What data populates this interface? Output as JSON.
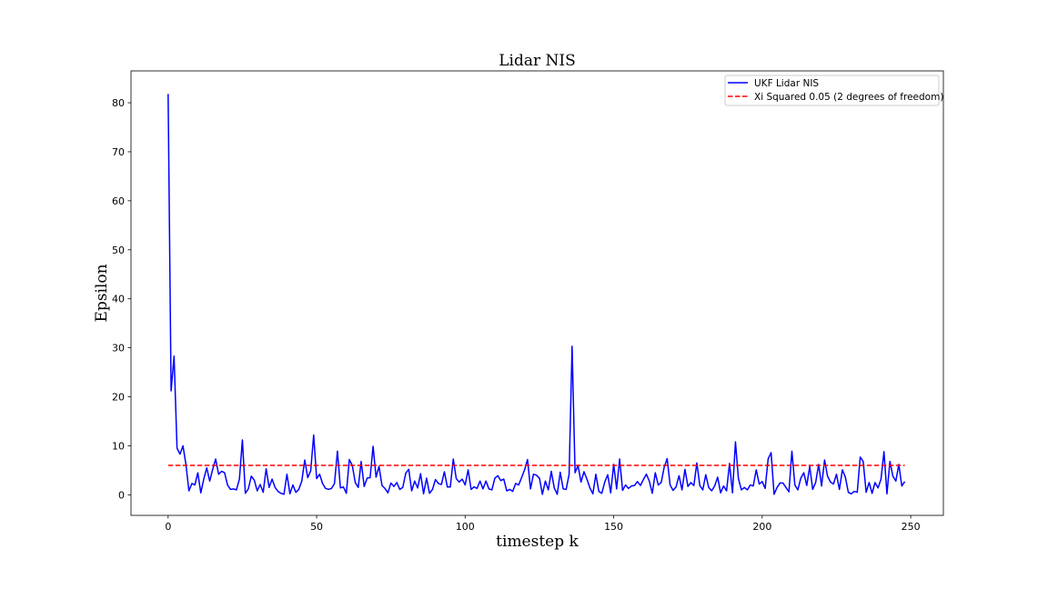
{
  "chart_data": {
    "type": "line",
    "title": "Lidar NIS",
    "xlabel": "timestep k",
    "ylabel": "Epsilon",
    "xlim": [
      -12.5,
      261
    ],
    "ylim": [
      -4.2,
      86.5
    ],
    "xticks": [
      0,
      50,
      100,
      150,
      200,
      250
    ],
    "yticks": [
      0,
      10,
      20,
      30,
      40,
      50,
      60,
      70,
      80
    ],
    "grid": false,
    "legend_position": "top-right",
    "series": [
      {
        "name": "UKF Lidar NIS",
        "color": "#0000ff",
        "style": "solid",
        "x_start": 0,
        "x_step": 1,
        "values": [
          81.8,
          21.2,
          28.3,
          9.5,
          8.3,
          10.0,
          6.2,
          0.8,
          2.3,
          2.0,
          4.5,
          0.4,
          3.2,
          5.5,
          2.8,
          5.2,
          7.3,
          4.2,
          4.8,
          4.5,
          2.0,
          1.1,
          1.2,
          1.0,
          3.2,
          11.2,
          0.3,
          1.2,
          3.8,
          3.0,
          0.8,
          2.1,
          0.5,
          5.3,
          1.5,
          3.2,
          1.5,
          0.7,
          0.3,
          0.1,
          4.2,
          0.2,
          2.0,
          0.5,
          1.1,
          2.8,
          7.1,
          3.5,
          4.9,
          12.2,
          3.3,
          4.2,
          2.3,
          1.3,
          1.1,
          1.3,
          2.3,
          8.9,
          1.4,
          1.6,
          0.3,
          7.2,
          6.0,
          2.5,
          1.5,
          6.8,
          1.7,
          3.4,
          3.5,
          9.9,
          3.6,
          5.8,
          1.9,
          1.3,
          0.4,
          2.4,
          1.7,
          2.5,
          1.1,
          1.5,
          4.4,
          5.2,
          0.8,
          2.8,
          1.4,
          4.3,
          0.2,
          3.4,
          0.3,
          1.1,
          3.1,
          2.3,
          2.1,
          4.7,
          1.6,
          1.6,
          7.3,
          3.3,
          2.6,
          3.2,
          2.0,
          5.1,
          1.1,
          1.6,
          1.3,
          2.8,
          1.2,
          2.8,
          1.2,
          1.0,
          3.4,
          3.9,
          2.9,
          3.2,
          0.8,
          1.1,
          0.7,
          2.3,
          2.0,
          3.5,
          5.1,
          7.2,
          1.2,
          4.2,
          4.0,
          3.4,
          0.1,
          2.8,
          1.0,
          4.8,
          1.4,
          0.1,
          4.6,
          1.2,
          1.1,
          4.2,
          30.3,
          4.5,
          6.0,
          2.6,
          4.7,
          3.2,
          1.4,
          0.2,
          4.2,
          0.7,
          0.3,
          2.6,
          4.1,
          0.4,
          6.2,
          1.2,
          7.3,
          0.9,
          2.0,
          1.3,
          1.8,
          1.9,
          2.7,
          1.9,
          3.1,
          4.2,
          2.8,
          0.3,
          4.5,
          2.0,
          2.5,
          5.6,
          7.4,
          2.0,
          0.9,
          1.6,
          3.9,
          1.0,
          5.2,
          1.7,
          2.5,
          1.9,
          6.5,
          1.9,
          1.0,
          4.1,
          1.5,
          0.8,
          1.8,
          3.6,
          0.4,
          1.8,
          0.8,
          6.4,
          0.4,
          10.8,
          3.3,
          1.0,
          1.5,
          1.0,
          2.0,
          1.8,
          5.1,
          2.2,
          2.7,
          1.3,
          7.3,
          8.6,
          0.1,
          1.5,
          2.4,
          2.4,
          1.5,
          0.6,
          8.9,
          2.0,
          1.0,
          3.4,
          4.5,
          1.9,
          5.8,
          1.1,
          2.5,
          6.2,
          1.8,
          7.1,
          3.8,
          2.6,
          2.2,
          4.2,
          1.1,
          5.1,
          3.6,
          0.5,
          0.2,
          0.7,
          0.5,
          7.7,
          6.8,
          0.5,
          2.5,
          0.3,
          2.5,
          1.4,
          3.2,
          8.8,
          0.2,
          6.8,
          3.8,
          2.8,
          6.2,
          1.8,
          2.7
        ]
      },
      {
        "name": "Xi Squared 0.05 (2 degrees of freedom)",
        "color": "#ff0000",
        "style": "dashed",
        "x": [
          0,
          248
        ],
        "values": [
          5.991,
          5.991
        ]
      }
    ]
  }
}
